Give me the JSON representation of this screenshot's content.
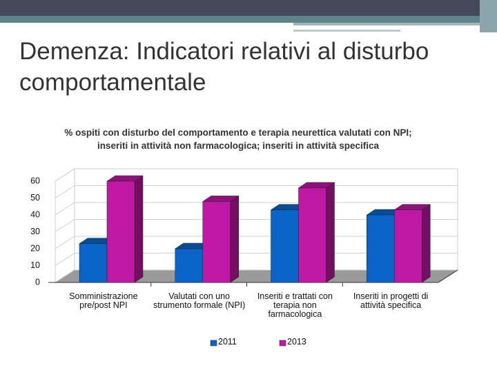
{
  "slide_title": "Demenza: Indicatori relativi al disturbo comportamentale",
  "chart_data": {
    "type": "bar3d",
    "title": "% ospiti con disturbo del comportamento e terapia neurettica valutati con NPI; inseriti in attività non farmacologica; inseriti in attività specifica",
    "categories": [
      "Somministrazione pre/post NPI",
      "Valutati con uno strumento formale (NPI)",
      "Inseriti e trattati con terapia non farmacologica",
      "Inseriti in progetti di attività specifica"
    ],
    "series": [
      {
        "name": "2011",
        "color": "#0a64c8",
        "values": [
          23,
          20,
          43,
          40
        ]
      },
      {
        "name": "2013",
        "color": "#bf18a4",
        "values": [
          60,
          48,
          56,
          43
        ]
      }
    ],
    "ylim": [
      0,
      60
    ],
    "yticks": [
      0,
      10,
      20,
      30,
      40,
      50,
      60
    ],
    "grid": true
  }
}
